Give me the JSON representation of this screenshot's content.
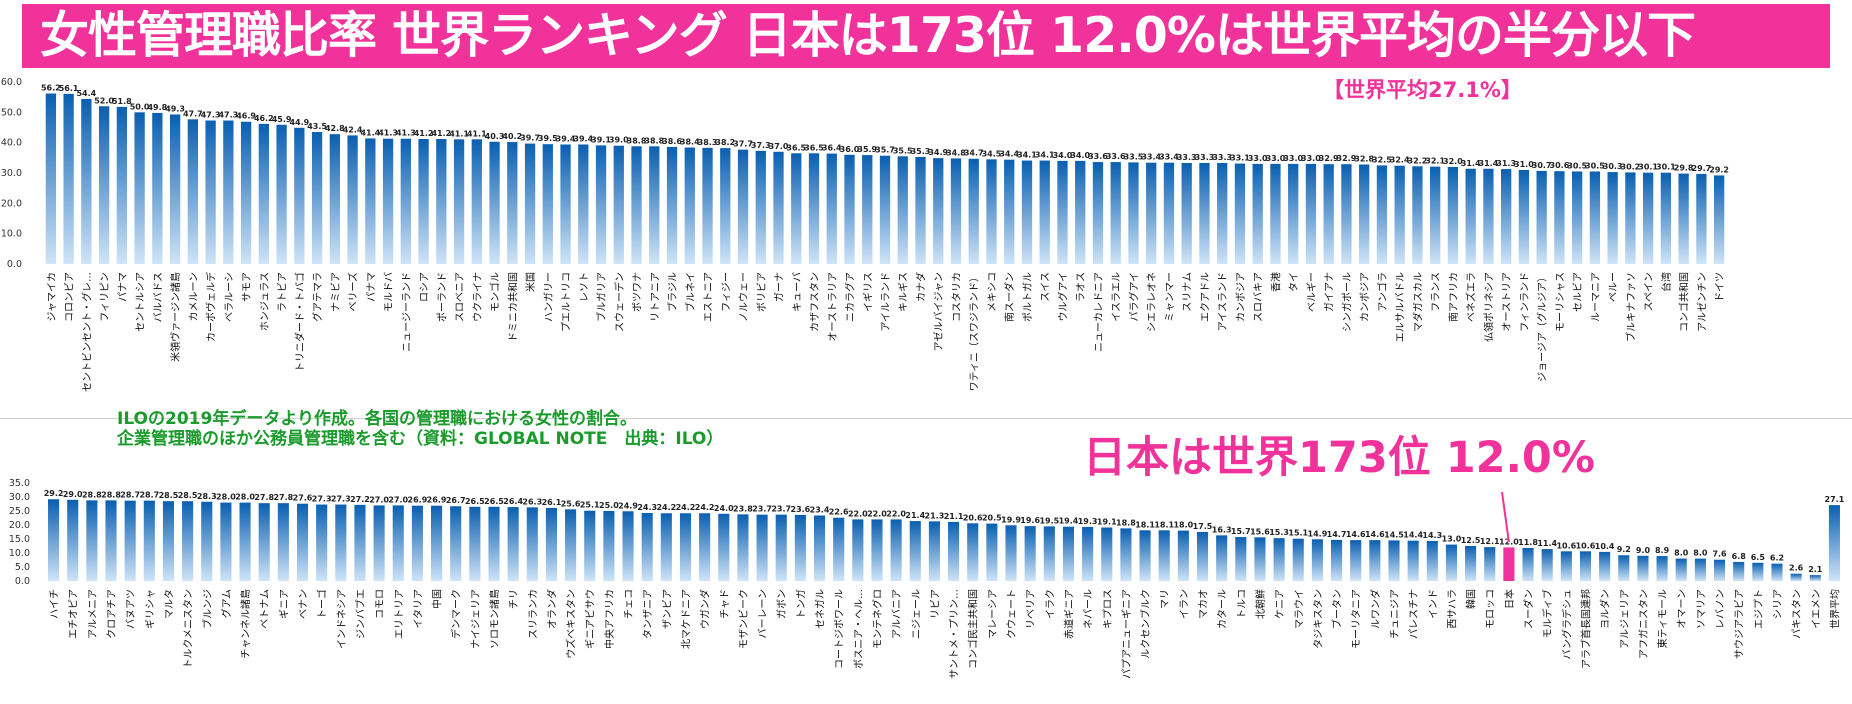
{
  "title": "女性管理職比率 世界ランキング 日本は173位 12.0%は世界平均の半分以下",
  "world_average_label": "【世界平均27.1%】",
  "japan_callout": "日本は世界173位  12.0%",
  "notes": [
    "ILOの2019年データより作成。各国の管理職における女性の割合。",
    "企業管理職のほか公務員管理職を含む（資料：GLOBAL NOTE　出典：ILO）"
  ],
  "colors": {
    "accent": "#f1329a",
    "bar_top": "#0a5fb0",
    "bar_bottom": "#cfe4f7",
    "note": "#1a9b2c",
    "highlight": "#f1329a"
  },
  "chart_data": [
    {
      "type": "bar",
      "ylim": [
        0,
        60
      ],
      "yticks": [
        "0.0",
        "10.0",
        "20.0",
        "30.0",
        "40.0",
        "50.0",
        "60.0"
      ],
      "categories": [
        "ジャマイカ",
        "コロンビア",
        "セントビンセント・グレ…",
        "フィリピン",
        "パナマ",
        "セントルシア",
        "バルバドス",
        "米領ヴァージン諸島",
        "カメルーン",
        "カーボヴェルデ",
        "ベラルーシ",
        "サモア",
        "ホンジュラス",
        "ラトビア",
        "トリニダード・トバゴ",
        "グアテマラ",
        "ナミビア",
        "ベリーズ",
        "パナマ",
        "モルドバ",
        "ニュージーランド",
        "ロシア",
        "ポーランド",
        "スロベニア",
        "ウクライナ",
        "モンゴル",
        "ドミニカ共和国",
        "米国",
        "ハンガリー",
        "プエルトリコ",
        "レソト",
        "ブルガリア",
        "スウェーデン",
        "ボツワナ",
        "リトアニア",
        "ブラジル",
        "ブルネイ",
        "エストニア",
        "フィジー",
        "ノルウェー",
        "ボリビア",
        "ガーナ",
        "キューバ",
        "カザフスタン",
        "オーストラリア",
        "ニカラグア",
        "イギリス",
        "アイルランド",
        "キルギス",
        "カナダ",
        "アゼルバイジャン",
        "コスタリカ",
        "ワティニ（スワジランド）",
        "メキシコ",
        "南スーダン",
        "ポルトガル",
        "スイス",
        "ウルグアイ",
        "ラオス",
        "ニューカレドニア",
        "イスラエル",
        "パラグアイ",
        "シエラレオネ",
        "ミャンマー",
        "スリナム",
        "エクアドル",
        "アイスランド",
        "カンボジア",
        "スロバキア",
        "香港",
        "タイ",
        "ベルギー",
        "ガイアナ",
        "シンガポール",
        "カンボジア",
        "アンゴラ",
        "エルサルバドル",
        "マダガスカル",
        "フランス",
        "南アフリカ",
        "ベネズエラ",
        "仏領ポリネシア",
        "オーストリア",
        "フィンランド",
        "ジョージア（グルジア）",
        "モーリシャス",
        "セルビア",
        "ルーマニア",
        "ペルー",
        "ブルキナファソ",
        "スペイン",
        "台湾",
        "コンゴ共和国",
        "アルゼンチン",
        "ドイツ"
      ],
      "values": [
        56.2,
        56.1,
        54.4,
        52.0,
        51.8,
        50.0,
        49.8,
        49.3,
        47.7,
        47.3,
        47.3,
        46.9,
        46.2,
        45.9,
        44.9,
        43.5,
        42.8,
        42.4,
        41.4,
        41.3,
        41.3,
        41.2,
        41.2,
        41.1,
        41.1,
        40.3,
        40.2,
        39.7,
        39.5,
        39.4,
        39.4,
        39.1,
        39.0,
        38.8,
        38.8,
        38.6,
        38.4,
        38.3,
        38.2,
        37.7,
        37.3,
        37.0,
        36.5,
        36.5,
        36.4,
        36.0,
        35.9,
        35.7,
        35.5,
        35.3,
        34.9,
        34.8,
        34.7,
        34.5,
        34.4,
        34.1,
        34.1,
        34.0,
        34.0,
        33.6,
        33.6,
        33.5,
        33.4,
        33.4,
        33.3,
        33.3,
        33.3,
        33.1,
        33.0,
        33.0,
        33.0,
        33.0,
        32.9,
        32.9,
        32.8,
        32.5,
        32.4,
        32.2,
        32.1,
        32.0,
        31.4,
        31.4,
        31.3,
        31.0,
        30.7,
        30.6,
        30.5,
        30.5,
        30.3,
        30.2,
        30.1,
        30.1,
        29.8,
        29.7,
        29.2
      ]
    },
    {
      "type": "bar",
      "ylim": [
        0,
        35
      ],
      "yticks": [
        "0.0",
        "5.0",
        "10.0",
        "15.0",
        "20.0",
        "25.0",
        "30.0",
        "35.0"
      ],
      "categories": [
        "ハイチ",
        "エチオピア",
        "アルメニア",
        "クロアチア",
        "バヌアツ",
        "ギリシャ",
        "マルタ",
        "トルクメニスタン",
        "ブルンジ",
        "グアム",
        "チャンネル諸島",
        "ベトナム",
        "ギニア",
        "ベナン",
        "トーゴ",
        "インドネシア",
        "ジンバブエ",
        "コモロ",
        "エリトリア",
        "イタリア",
        "中国",
        "デンマーク",
        "ナイジェリア",
        "ソロモン諸島",
        "チリ",
        "スリランカ",
        "オランダ",
        "ウズベキスタン",
        "ギニアビサウ",
        "中央アフリカ",
        "チェコ",
        "タンザニア",
        "ザンビア",
        "北マケドニア",
        "ウガンダ",
        "チャド",
        "モザンビーク",
        "バーレーン",
        "ガボン",
        "トンガ",
        "セネガル",
        "コートジボワール",
        "ボスニア・ヘル…",
        "モンテネグロ",
        "アルバニア",
        "ニジェール",
        "リビア",
        "サントメ・プリン…",
        "コンゴ民主共和国",
        "マレーシア",
        "クウェート",
        "リベリア",
        "イラク",
        "赤道ギニア",
        "ネパール",
        "キプロス",
        "パプアニューギニア",
        "ルクセンブルク",
        "マリ",
        "イラン",
        "マカオ",
        "カタール",
        "トルコ",
        "北朝鮮",
        "ケニア",
        "マラウイ",
        "タジキスタン",
        "ブータン",
        "モーリタニア",
        "ルワンダ",
        "チュニジア",
        "パレスチナ",
        "インド",
        "西サハラ",
        "韓国",
        "モロッコ",
        "日本",
        "スーダン",
        "モルディブ",
        "バングラデシュ",
        "アラブ首長国連邦",
        "ヨルダン",
        "アルジェリア",
        "アフガニスタン",
        "東ティモール",
        "オマーン",
        "ソマリア",
        "レバノン",
        "サウジアラビア",
        "エジプト",
        "シリア",
        "パキスタン",
        "イエメン",
        "世界平均"
      ],
      "values": [
        29.2,
        29.0,
        28.8,
        28.8,
        28.7,
        28.7,
        28.5,
        28.5,
        28.3,
        28.0,
        28.0,
        27.8,
        27.8,
        27.6,
        27.3,
        27.3,
        27.2,
        27.0,
        27.0,
        26.9,
        26.9,
        26.7,
        26.5,
        26.5,
        26.4,
        26.3,
        26.1,
        25.6,
        25.1,
        25.0,
        24.9,
        24.3,
        24.2,
        24.2,
        24.2,
        24.0,
        23.8,
        23.7,
        23.7,
        23.6,
        23.4,
        22.6,
        22.0,
        22.0,
        22.0,
        21.4,
        21.3,
        21.1,
        20.6,
        20.5,
        19.9,
        19.6,
        19.5,
        19.4,
        19.3,
        19.1,
        18.8,
        18.1,
        18.1,
        18.0,
        17.5,
        16.3,
        15.7,
        15.6,
        15.3,
        15.1,
        14.9,
        14.7,
        14.6,
        14.6,
        14.5,
        14.4,
        14.3,
        13.0,
        12.5,
        12.1,
        12.0,
        11.8,
        11.4,
        10.6,
        10.6,
        10.4,
        9.2,
        9.0,
        8.9,
        8.0,
        8.0,
        7.6,
        6.8,
        6.5,
        6.2,
        2.6,
        2.1,
        27.1
      ],
      "highlight_index": 76
    }
  ]
}
